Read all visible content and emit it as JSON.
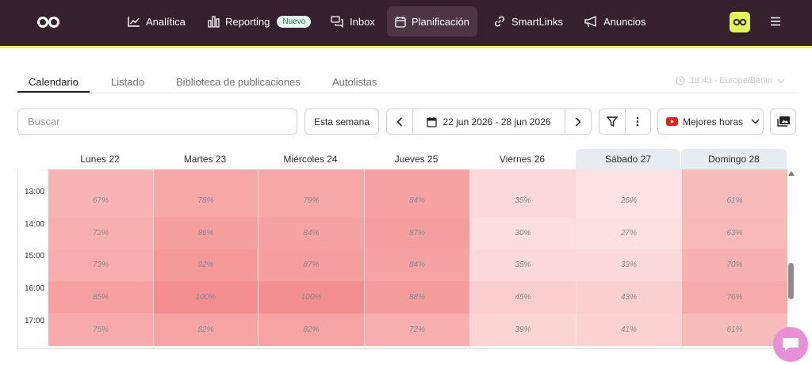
{
  "nav": {
    "items": [
      {
        "label": "Analítica",
        "icon": "chart-line-icon"
      },
      {
        "label": "Reporting",
        "icon": "bar-chart-icon",
        "badge": "Nuevo"
      },
      {
        "label": "Inbox",
        "icon": "chat-bubbles-icon"
      },
      {
        "label": "Planificación",
        "icon": "calendar-icon",
        "active": true
      },
      {
        "label": "SmartLinks",
        "icon": "link-icon"
      },
      {
        "label": "Anuncios",
        "icon": "megaphone-icon"
      }
    ],
    "colors": {
      "bar": "#35202e",
      "accent": "#e4f35a"
    }
  },
  "tabs": [
    {
      "label": "Calendario",
      "active": true
    },
    {
      "label": "Listado"
    },
    {
      "label": "Biblioteca de publicaciones"
    },
    {
      "label": "Autolistas"
    }
  ],
  "timezone": "18:43 - Europe/Berlin",
  "toolbar": {
    "search_placeholder": "Buscar",
    "this_week": "Esta semana",
    "date_range": "22 jun 2026 - 28 jun 2026",
    "best_hours": "Mejores horas"
  },
  "days": [
    "Lunes 22",
    "Martes 23",
    "Miércoles 24",
    "Jueves 25",
    "Viernes 26",
    "Sábado 27",
    "Domingo 28"
  ],
  "hours": [
    "13:00",
    "14:00",
    "15:00",
    "16:00",
    "17:00"
  ],
  "heatmap": [
    [
      "67%",
      "78%",
      "79%",
      "84%",
      "35%",
      "26%",
      "61%"
    ],
    [
      "72%",
      "86%",
      "84%",
      "87%",
      "30%",
      "27%",
      "63%"
    ],
    [
      "73%",
      "92%",
      "87%",
      "84%",
      "35%",
      "33%",
      "70%"
    ],
    [
      "85%",
      "100%",
      "100%",
      "88%",
      "45%",
      "43%",
      "76%"
    ],
    [
      "75%",
      "82%",
      "82%",
      "72%",
      "39%",
      "41%",
      "61%"
    ]
  ]
}
